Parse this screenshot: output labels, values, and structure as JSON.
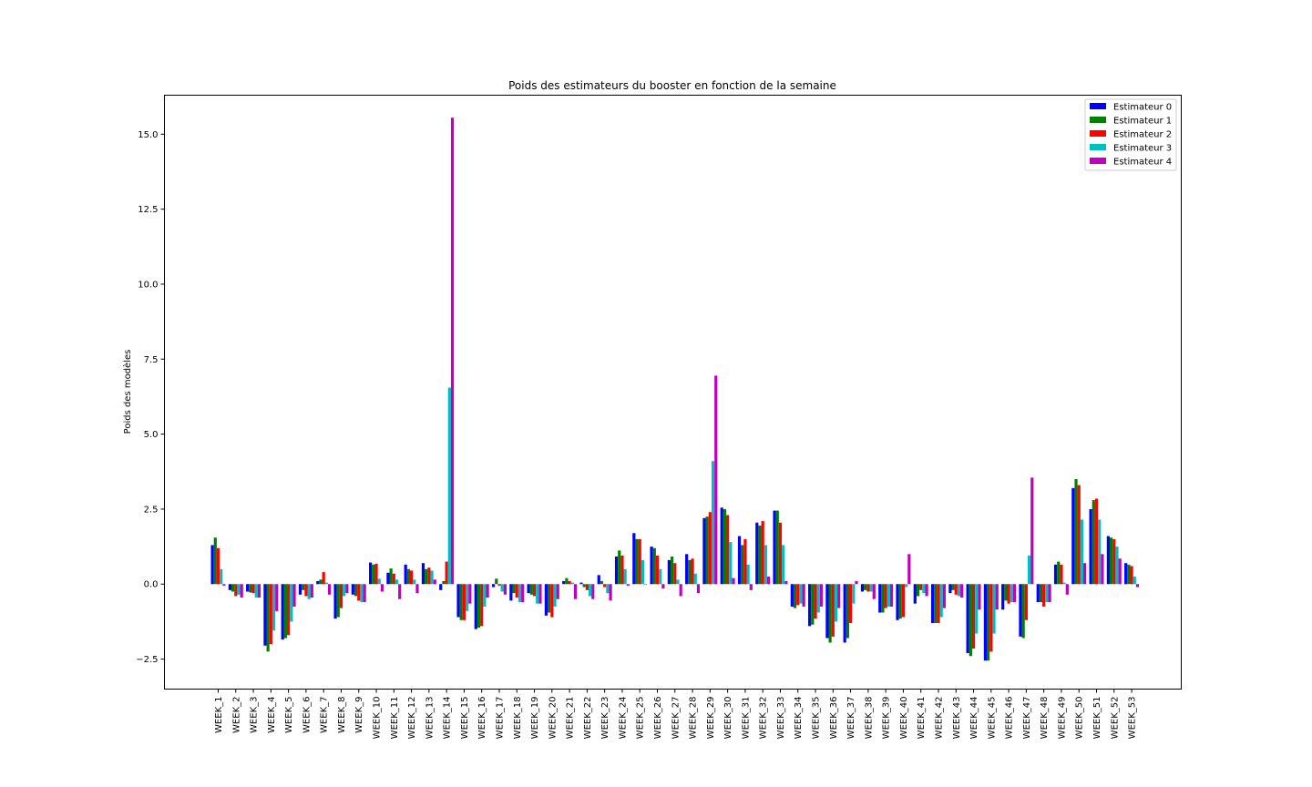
{
  "chart_data": {
    "type": "bar",
    "title": "Poids des estimateurs du booster en fonction de la semaine",
    "xlabel": "",
    "ylabel": "Poids des modèles",
    "ylim": [
      -3.5,
      16.3
    ],
    "yticks": [
      -2.5,
      0.0,
      2.5,
      5.0,
      7.5,
      10.0,
      12.5,
      15.0
    ],
    "ytick_labels": [
      "−2.5",
      "0.0",
      "2.5",
      "5.0",
      "7.5",
      "10.0",
      "12.5",
      "15.0"
    ],
    "legend_position": "top-right",
    "grid": false,
    "categories": [
      "WEEK_1",
      "WEEK_2",
      "WEEK_3",
      "WEEK_4",
      "WEEK_5",
      "WEEK_6",
      "WEEK_7",
      "WEEK_8",
      "WEEK_9",
      "WEEK_10",
      "WEEK_11",
      "WEEK_12",
      "WEEK_13",
      "WEEK_14",
      "WEEK_15",
      "WEEK_16",
      "WEEK_17",
      "WEEK_18",
      "WEEK_19",
      "WEEK_20",
      "WEEK_21",
      "WEEK_22",
      "WEEK_23",
      "WEEK_24",
      "WEEK_25",
      "WEEK_26",
      "WEEK_27",
      "WEEK_28",
      "WEEK_29",
      "WEEK_30",
      "WEEK_31",
      "WEEK_32",
      "WEEK_33",
      "WEEK_34",
      "WEEK_35",
      "WEEK_36",
      "WEEK_37",
      "WEEK_38",
      "WEEK_39",
      "WEEK_40",
      "WEEK_41",
      "WEEK_42",
      "WEEK_43",
      "WEEK_44",
      "WEEK_45",
      "WEEK_46",
      "WEEK_47",
      "WEEK_48",
      "WEEK_49",
      "WEEK_50",
      "WEEK_51",
      "WEEK_52",
      "WEEK_53"
    ],
    "series": [
      {
        "name": "Estimateur 0",
        "color": "#0000ff",
        "values": [
          1.3,
          -0.2,
          -0.25,
          -2.05,
          -1.85,
          -0.35,
          0.1,
          -1.15,
          -0.35,
          0.72,
          0.38,
          0.65,
          0.7,
          -0.2,
          -1.1,
          -1.5,
          -0.1,
          -0.55,
          -0.3,
          -1.05,
          0.1,
          0.05,
          0.3,
          0.92,
          1.7,
          1.25,
          0.8,
          1.0,
          2.2,
          2.55,
          1.6,
          2.05,
          2.45,
          -0.75,
          -1.4,
          -1.8,
          -1.95,
          -0.25,
          -0.95,
          -1.2,
          -0.65,
          -1.3,
          -0.3,
          -2.3,
          -2.55,
          -0.85,
          -1.75,
          -0.6,
          0.65,
          3.2,
          2.5,
          1.6,
          0.7
        ]
      },
      {
        "name": "Estimateur 1",
        "color": "#008000",
        "values": [
          1.55,
          -0.25,
          -0.28,
          -2.25,
          -1.8,
          -0.2,
          0.15,
          -1.1,
          -0.4,
          0.65,
          0.52,
          0.5,
          0.5,
          0.1,
          -1.2,
          -1.45,
          0.18,
          -0.3,
          -0.35,
          -0.95,
          0.2,
          -0.1,
          0.1,
          1.12,
          1.5,
          1.2,
          0.92,
          0.8,
          2.25,
          2.5,
          1.3,
          1.95,
          2.45,
          -0.8,
          -1.35,
          -1.95,
          -1.8,
          -0.2,
          -0.95,
          -1.15,
          -0.4,
          -1.3,
          -0.2,
          -2.4,
          -2.55,
          -0.55,
          -1.8,
          -0.6,
          0.75,
          3.5,
          2.8,
          1.55,
          0.65
        ]
      },
      {
        "name": "Estimateur 2",
        "color": "#ff0000",
        "values": [
          1.2,
          -0.4,
          -0.3,
          -2.0,
          -1.7,
          -0.4,
          0.4,
          -0.8,
          -0.55,
          0.68,
          0.35,
          0.45,
          0.55,
          0.75,
          -1.2,
          -1.4,
          -0.05,
          -0.45,
          -0.4,
          -1.1,
          0.1,
          -0.2,
          -0.1,
          0.95,
          1.5,
          0.95,
          0.7,
          0.85,
          2.4,
          2.3,
          1.5,
          2.1,
          2.05,
          -0.7,
          -1.15,
          -1.75,
          -1.3,
          -0.25,
          -0.8,
          -1.1,
          -0.2,
          -1.3,
          -0.35,
          -2.15,
          -2.25,
          -0.65,
          -1.2,
          -0.75,
          0.65,
          3.3,
          2.85,
          1.5,
          0.6
        ]
      },
      {
        "name": "Estimateur 3",
        "color": "#00bfbf",
        "values": [
          0.5,
          -0.35,
          -0.45,
          -1.55,
          -1.25,
          -0.5,
          0.05,
          -0.4,
          -0.6,
          0.18,
          0.15,
          0.15,
          0.45,
          6.55,
          -0.9,
          -0.75,
          -0.25,
          -0.6,
          -0.65,
          -0.75,
          0.05,
          -0.4,
          -0.3,
          0.5,
          0.8,
          0.5,
          0.15,
          0.35,
          4.1,
          1.4,
          0.65,
          1.3,
          1.3,
          -0.65,
          -0.95,
          -1.25,
          -0.65,
          -0.25,
          -0.75,
          -0.1,
          -0.3,
          -1.1,
          -0.4,
          -1.65,
          -1.65,
          -0.6,
          0.95,
          -0.6,
          0.05,
          2.15,
          2.15,
          1.25,
          0.25
        ]
      },
      {
        "name": "Estimateur 4",
        "color": "#bf00bf",
        "values": [
          -0.05,
          -0.45,
          -0.45,
          -0.9,
          -0.75,
          -0.45,
          -0.35,
          -0.3,
          -0.6,
          -0.25,
          -0.5,
          -0.3,
          0.15,
          15.55,
          -0.65,
          -0.45,
          -0.35,
          -0.6,
          -0.65,
          -0.5,
          -0.5,
          -0.5,
          -0.55,
          -0.05,
          0.0,
          -0.15,
          -0.4,
          -0.3,
          6.95,
          0.2,
          -0.2,
          0.25,
          0.1,
          -0.75,
          -0.75,
          -0.8,
          0.1,
          -0.5,
          -0.75,
          1.0,
          -0.4,
          -0.8,
          -0.45,
          -0.85,
          -0.85,
          -0.6,
          3.55,
          -0.6,
          -0.35,
          0.7,
          1.0,
          0.85,
          -0.1
        ]
      }
    ]
  }
}
